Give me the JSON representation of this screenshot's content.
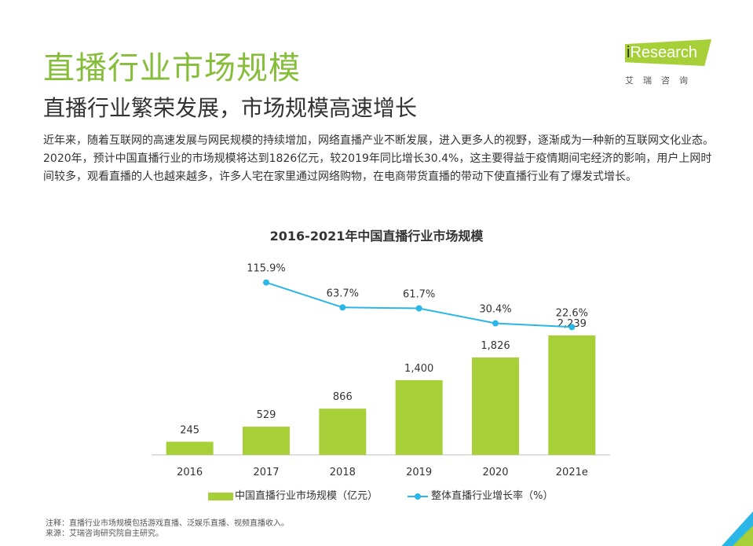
{
  "header": {
    "title": "直播行业市场规模",
    "subtitle": "直播行业繁荣发展，市场规模高速增长"
  },
  "logo": {
    "brand_i": "i",
    "brand_rest": "Research",
    "chinese": "艾瑞咨询"
  },
  "body": {
    "paragraph": "近年来，随着互联网的高速发展与网民规模的持续增加，网络直播产业不断发展，进入更多人的视野，逐渐成为一种新的互联网文化业态。2020年，预计中国直播行业的市场规模将达到1826亿元，较2019年同比增长30.4%，这主要得益于疫情期间宅经济的影响，用户上网时间较多，观看直播的人也越来越多，许多人宅在家里通过网络购物，在电商带货直播的带动下使直播行业有了爆发式增长。"
  },
  "chart_data": {
    "type": "bar",
    "title": "2016-2021年中国直播行业市场规模",
    "categories": [
      "2016",
      "2017",
      "2018",
      "2019",
      "2020",
      "2021e"
    ],
    "series": [
      {
        "name": "中国直播行业市场规模（亿元）",
        "type": "bar",
        "values": [
          245,
          529,
          866,
          1400,
          1826,
          2239
        ],
        "labels": [
          "245",
          "529",
          "866",
          "1,400",
          "1,826",
          "2,239"
        ],
        "color": "#a6cf38"
      },
      {
        "name": "整体直播行业增长率（%）",
        "type": "line",
        "values": [
          null,
          115.9,
          63.7,
          61.7,
          30.4,
          22.6
        ],
        "labels": [
          "",
          "115.9%",
          "63.7%",
          "61.7%",
          "30.4%",
          "22.6%"
        ],
        "color": "#2ab6e6"
      }
    ],
    "bar_ylim": [
      0,
      2400
    ],
    "line_ylim": [
      0,
      130
    ],
    "grid": false,
    "legend": "bottom"
  },
  "notes": {
    "note": "注释：直播行业市场规模包括游戏直播、泛娱乐直播、视频直播收入。",
    "source": "来源：艾瑞咨询研究院自主研究。"
  },
  "colors": {
    "accent_green": "#86bd3a",
    "bar_green": "#a6cf38",
    "line_blue": "#2ab6e6"
  }
}
